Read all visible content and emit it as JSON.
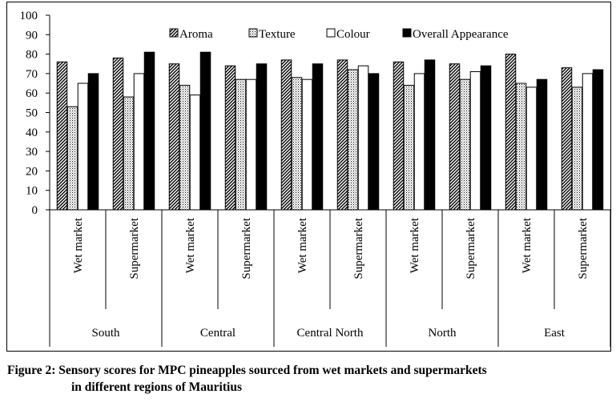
{
  "chart_data": {
    "type": "bar",
    "title": "",
    "xlabel": "",
    "ylabel": "",
    "ylim": [
      0,
      100
    ],
    "yticks": [
      0,
      10,
      20,
      30,
      40,
      50,
      60,
      70,
      80,
      90,
      100
    ],
    "grid": false,
    "legend_position": "top-right",
    "categories": [
      {
        "region": "South",
        "market": "Wet market"
      },
      {
        "region": "South",
        "market": "Supermarket"
      },
      {
        "region": "Central",
        "market": "Wet market"
      },
      {
        "region": "Central",
        "market": "Supermarket"
      },
      {
        "region": "Central North",
        "market": "Wet market"
      },
      {
        "region": "Central North",
        "market": "Supermarket"
      },
      {
        "region": "North",
        "market": "Wet market"
      },
      {
        "region": "North",
        "market": "Supermarket"
      },
      {
        "region": "East",
        "market": "Wet market"
      },
      {
        "region": "East",
        "market": "Supermarket"
      }
    ],
    "regions": [
      "South",
      "Central",
      "Central North",
      "North",
      "East"
    ],
    "series": [
      {
        "name": "Aroma",
        "pattern": "diagonal-hatch",
        "values": [
          76,
          78,
          75,
          74,
          77,
          77,
          76,
          75,
          80,
          73
        ]
      },
      {
        "name": "Texture",
        "pattern": "dotted",
        "values": [
          53,
          58,
          64,
          67,
          68,
          72,
          64,
          67,
          65,
          63
        ]
      },
      {
        "name": "Colour",
        "pattern": "white",
        "values": [
          65,
          70,
          59,
          67,
          67,
          74,
          70,
          71,
          63,
          70
        ]
      },
      {
        "name": "Overall Appearance",
        "pattern": "black",
        "values": [
          70,
          81,
          81,
          75,
          75,
          70,
          77,
          74,
          67,
          72
        ]
      }
    ]
  },
  "caption": {
    "line1": "Figure 2: Sensory scores for MPC pineapples sourced from wet markets and supermarkets",
    "line2": "in different regions of Mauritius"
  }
}
